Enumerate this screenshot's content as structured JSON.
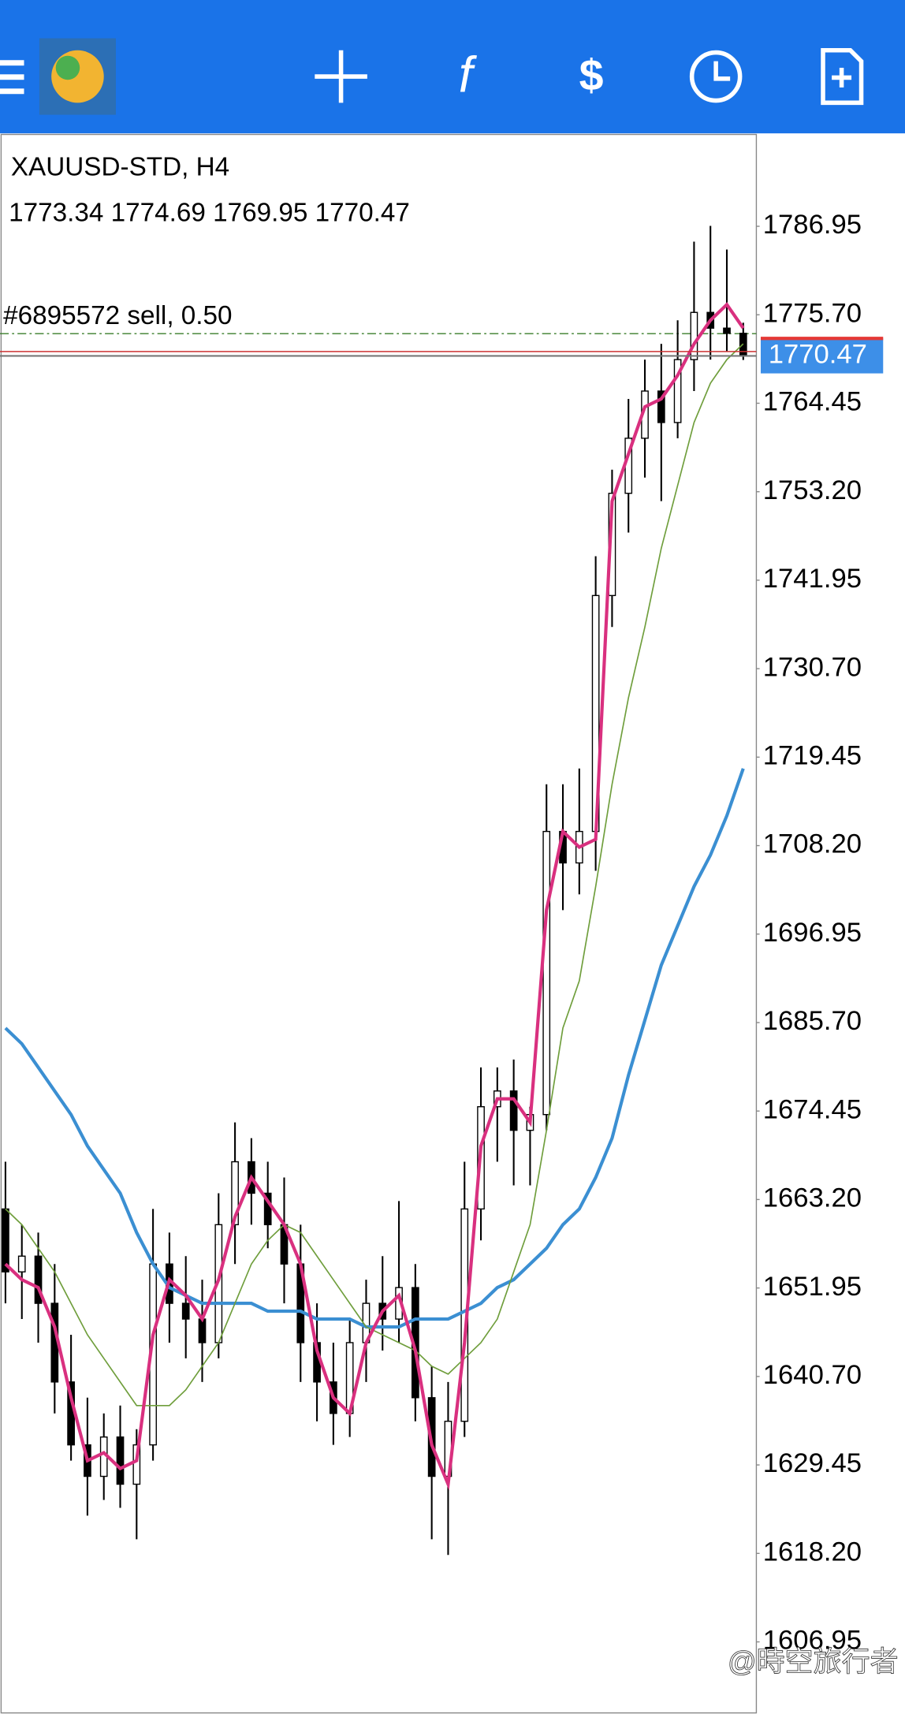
{
  "header": {
    "watermark": "@時空旅行者"
  },
  "chart_data": {
    "type": "candlestick",
    "title": "XAUUSD-STD, H4",
    "order": {
      "label": "#6895572 sell, 0.50",
      "price": 1773.3
    },
    "open": [
      1662,
      1654,
      1656,
      1650,
      1640,
      1632,
      1628,
      1633,
      1627,
      1632,
      1655,
      1650,
      1648,
      1645,
      1660,
      1668,
      1664,
      1660,
      1655,
      1645,
      1640,
      1636,
      1645,
      1650,
      1648,
      1652,
      1638,
      1628,
      1635,
      1662,
      1675,
      1677,
      1672,
      1674,
      1710,
      1706,
      1710,
      1740,
      1753,
      1760,
      1766,
      1762,
      1770,
      1776,
      1774,
      1773.34
    ],
    "high": [
      1668,
      1660,
      1659,
      1655,
      1646,
      1638,
      1636,
      1637,
      1634,
      1662,
      1659,
      1656,
      1653,
      1664,
      1673,
      1671,
      1668,
      1666,
      1660,
      1650,
      1645,
      1648,
      1653,
      1656,
      1663,
      1655,
      1642,
      1640,
      1668,
      1680,
      1680,
      1681,
      1675,
      1716,
      1716,
      1718,
      1745,
      1756,
      1765,
      1770,
      1772,
      1775,
      1785,
      1787,
      1784,
      1774.69
    ],
    "low": [
      1650,
      1648,
      1645,
      1636,
      1630,
      1623,
      1625,
      1624,
      1620,
      1630,
      1645,
      1643,
      1640,
      1643,
      1655,
      1660,
      1657,
      1650,
      1640,
      1635,
      1632,
      1633,
      1640,
      1644,
      1645,
      1635,
      1620,
      1618,
      1633,
      1658,
      1668,
      1665,
      1665,
      1672,
      1700,
      1702,
      1705,
      1736,
      1748,
      1755,
      1752,
      1760,
      1766,
      1770,
      1771,
      1769.95
    ],
    "close": [
      1654,
      1656,
      1650,
      1640,
      1632,
      1628,
      1633,
      1627,
      1632,
      1655,
      1650,
      1648,
      1645,
      1660,
      1668,
      1664,
      1660,
      1655,
      1645,
      1640,
      1636,
      1645,
      1650,
      1648,
      1652,
      1638,
      1628,
      1635,
      1662,
      1675,
      1677,
      1672,
      1674,
      1710,
      1706,
      1710,
      1740,
      1753,
      1760,
      1766,
      1762,
      1770,
      1776,
      1774,
      1773.34,
      1770.47
    ],
    "series": [
      {
        "color": "#d9307f",
        "values": [
          1655,
          1653,
          1652,
          1647,
          1638,
          1630,
          1631,
          1629,
          1630,
          1646,
          1653,
          1651,
          1648,
          1653,
          1661,
          1666,
          1663,
          1660,
          1655,
          1644,
          1638,
          1636,
          1645,
          1649,
          1651,
          1644,
          1632,
          1627,
          1645,
          1670,
          1676,
          1676,
          1673,
          1700,
          1710,
          1708,
          1709,
          1752,
          1758,
          1764,
          1765,
          1768,
          1772,
          1775,
          1777,
          1774
        ]
      },
      {
        "color": "#6f9e3c",
        "values": [
          1662,
          1660,
          1657,
          1654,
          1650,
          1646,
          1643,
          1640,
          1637,
          1637,
          1637,
          1639,
          1642,
          1645,
          1650,
          1655,
          1658,
          1660,
          1659,
          1656,
          1653,
          1650,
          1647,
          1646,
          1645,
          1644,
          1642,
          1641,
          1643,
          1645,
          1648,
          1654,
          1660,
          1672,
          1685,
          1691,
          1703,
          1716,
          1727,
          1736,
          1746,
          1754,
          1762,
          1767,
          1770,
          1772
        ]
      },
      {
        "color": "#3b8fd2",
        "values": [
          1685,
          1683,
          1680,
          1677,
          1674,
          1670,
          1667,
          1664,
          1659,
          1655,
          1652,
          1651,
          1650,
          1650,
          1650,
          1650,
          1649,
          1649,
          1649,
          1648,
          1648,
          1648,
          1647,
          1647,
          1647,
          1648,
          1648,
          1648,
          1649,
          1650,
          1652,
          1653,
          1655,
          1657,
          1660,
          1662,
          1666,
          1671,
          1679,
          1686,
          1693,
          1698,
          1703,
          1707,
          1712,
          1718
        ]
      }
    ],
    "ylim": [
      1597.78,
      1798.35
    ],
    "yticks": [
      1786.95,
      {
        "value": 1775.7,
        "label": "1775.70"
      },
      1764.45,
      {
        "value": 1753.2,
        "label": "1753.20"
      },
      1741.95,
      {
        "value": 1730.7,
        "label": "1730.70"
      },
      1719.45,
      {
        "value": 1708.2,
        "label": "1708.20"
      },
      1696.95,
      {
        "value": 1685.7,
        "label": "1685.70"
      },
      1674.45,
      {
        "value": 1663.2,
        "label": "1663.20"
      },
      1651.95,
      {
        "value": 1640.7,
        "label": "1640.70"
      },
      1629.45,
      {
        "value": 1618.2,
        "label": "1618.20"
      },
      1606.95
    ],
    "grid": false
  }
}
